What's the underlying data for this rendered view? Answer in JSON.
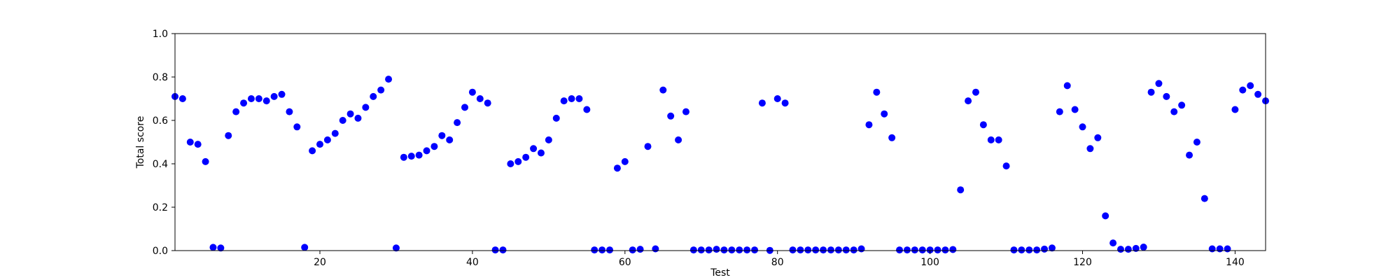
{
  "chart_data": {
    "type": "scatter",
    "title": "",
    "xlabel": "Test",
    "ylabel": "Total score",
    "xlim": [
      1,
      144
    ],
    "ylim": [
      0.0,
      1.0
    ],
    "x_ticks": [
      20,
      40,
      60,
      80,
      100,
      120,
      140
    ],
    "y_ticks": [
      0.0,
      0.2,
      0.4,
      0.6,
      0.8,
      1.0
    ],
    "x_tick_labels": [
      "20",
      "40",
      "60",
      "80",
      "100",
      "120",
      "140"
    ],
    "y_tick_labels": [
      "0.0",
      "0.2",
      "0.4",
      "0.6",
      "0.8",
      "1.0"
    ],
    "grid": false,
    "legend": "none",
    "marker_color": "#0000ff",
    "series": [
      {
        "x": [
          1,
          2,
          3,
          4,
          5,
          6,
          7,
          8,
          9,
          10,
          11,
          12,
          13,
          14,
          15,
          16,
          17,
          18,
          19,
          20,
          21,
          22,
          23,
          24,
          25,
          26,
          27,
          28,
          29,
          30,
          31,
          32,
          33,
          34,
          35,
          36,
          37,
          38,
          39,
          40,
          41,
          42,
          43,
          44,
          45,
          46,
          47,
          48,
          49,
          50,
          51,
          52,
          53,
          54,
          55,
          56,
          57,
          58,
          59,
          60,
          61,
          62,
          63,
          64,
          65,
          66,
          67,
          68,
          69,
          70,
          71,
          72,
          73,
          74,
          75,
          76,
          77,
          78,
          79,
          80,
          81,
          82,
          83,
          84,
          85,
          86,
          87,
          88,
          89,
          90,
          91,
          92,
          93,
          94,
          95,
          96,
          97,
          98,
          99,
          100,
          101,
          102,
          103,
          104,
          105,
          106,
          107,
          108,
          109,
          110,
          111,
          112,
          113,
          114,
          115,
          116,
          117,
          118,
          119,
          120,
          121,
          122,
          123,
          124,
          125,
          126,
          127,
          128,
          129,
          130,
          131,
          132,
          133,
          134,
          135,
          136,
          137,
          138,
          139,
          140,
          141,
          142,
          143,
          144
        ],
        "y": [
          0.71,
          0.7,
          0.5,
          0.49,
          0.41,
          0.015,
          0.012,
          0.53,
          0.64,
          0.68,
          0.7,
          0.7,
          0.69,
          0.71,
          0.72,
          0.64,
          0.57,
          0.015,
          0.46,
          0.49,
          0.51,
          0.54,
          0.6,
          0.63,
          0.61,
          0.66,
          0.71,
          0.74,
          0.79,
          0.012,
          0.43,
          0.435,
          0.44,
          0.46,
          0.48,
          0.53,
          0.51,
          0.59,
          0.66,
          0.73,
          0.7,
          0.68,
          0.003,
          0.003,
          0.4,
          0.41,
          0.43,
          0.47,
          0.45,
          0.51,
          0.61,
          0.69,
          0.7,
          0.7,
          0.65,
          0.003,
          0.003,
          0.003,
          0.38,
          0.41,
          0.003,
          0.006,
          0.48,
          0.008,
          0.74,
          0.62,
          0.51,
          0.64,
          0.003,
          0.003,
          0.003,
          0.006,
          0.003,
          0.003,
          0.003,
          0.003,
          0.003,
          0.68,
          0.001,
          0.7,
          0.68,
          0.003,
          0.003,
          0.003,
          0.003,
          0.003,
          0.003,
          0.003,
          0.003,
          0.003,
          0.008,
          0.58,
          0.73,
          0.63,
          0.52,
          0.003,
          0.003,
          0.003,
          0.003,
          0.003,
          0.003,
          0.003,
          0.005,
          0.28,
          0.69,
          0.73,
          0.58,
          0.51,
          0.51,
          0.39,
          0.003,
          0.003,
          0.003,
          0.003,
          0.007,
          0.012,
          0.64,
          0.76,
          0.65,
          0.57,
          0.47,
          0.52,
          0.16,
          0.035,
          0.006,
          0.006,
          0.01,
          0.016,
          0.73,
          0.77,
          0.71,
          0.64,
          0.67,
          0.44,
          0.5,
          0.24,
          0.008,
          0.008,
          0.008,
          0.65,
          0.74,
          0.76,
          0.72,
          0.69
        ]
      }
    ]
  }
}
